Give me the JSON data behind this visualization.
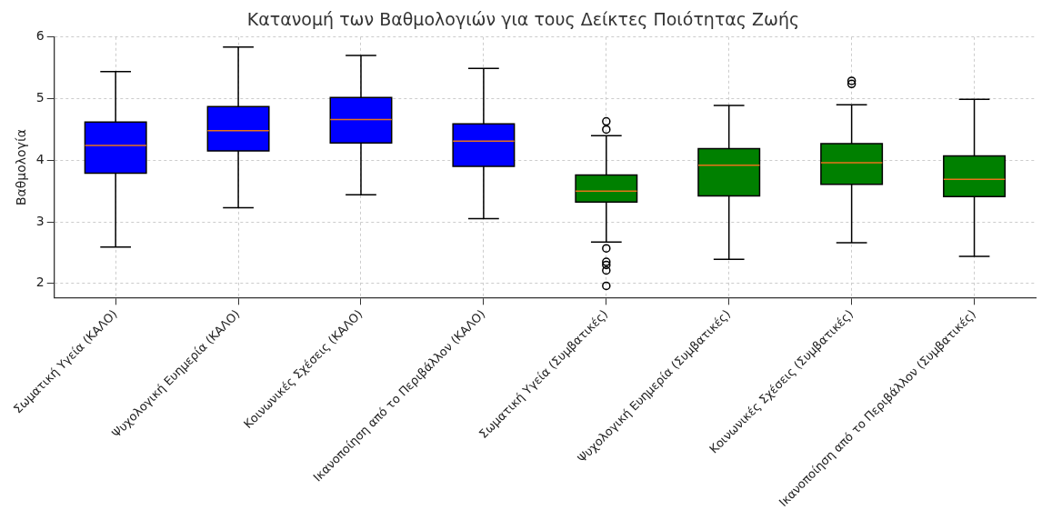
{
  "chart_data": {
    "type": "box",
    "title": "Κατανομή των Βαθμολογιών για τους Δείκτες Ποιότητας Ζωής",
    "ylabel": "Βαθμολογία",
    "categories": [
      "Σωματική Υγεία (ΚΑΛΟ)",
      "Ψυχολογική Ευημερία (ΚΑΛΟ)",
      "Κοινωνικές Σχέσεις (ΚΑΛΟ)",
      "Ικανοποίηση από το Περιβάλλον (ΚΑΛΟ)",
      "Σωματική Υγεία (Συμβατικές)",
      "Ψυχολογική Ευημερία (Συμβατικές)",
      "Κοινωνικές Σχέσεις (Συμβατικές)",
      "Ικανοποίηση από το Περιβάλλον (Συμβατικές)"
    ],
    "colors": [
      "#0000ff",
      "#0000ff",
      "#0000ff",
      "#0000ff",
      "#008000",
      "#008000",
      "#008000",
      "#008000"
    ],
    "boxes": [
      {
        "low": 2.59,
        "q1": 3.79,
        "median": 4.24,
        "q3": 4.62,
        "high": 5.44
      },
      {
        "low": 3.23,
        "q1": 4.15,
        "median": 4.48,
        "q3": 4.87,
        "high": 5.84
      },
      {
        "low": 3.44,
        "q1": 4.28,
        "median": 4.66,
        "q3": 5.02,
        "high": 5.7
      },
      {
        "low": 3.05,
        "q1": 3.9,
        "median": 4.31,
        "q3": 4.59,
        "high": 5.49
      },
      {
        "low": 2.67,
        "q1": 3.32,
        "median": 3.5,
        "q3": 3.76,
        "high": 4.4,
        "outliers": [
          4.63,
          4.5,
          2.57,
          2.35,
          2.3,
          2.21,
          1.96
        ]
      },
      {
        "low": 2.39,
        "q1": 3.42,
        "median": 3.92,
        "q3": 4.19,
        "high": 4.89
      },
      {
        "low": 2.66,
        "q1": 3.61,
        "median": 3.96,
        "q3": 4.27,
        "high": 4.9,
        "outliers": [
          5.29,
          5.24
        ]
      },
      {
        "low": 2.44,
        "q1": 3.41,
        "median": 3.69,
        "q3": 4.07,
        "high": 4.99
      }
    ],
    "ylim": [
      1.77,
      6.0
    ],
    "yticks": [
      2,
      3,
      4,
      5,
      6
    ],
    "grid": true,
    "legend": false
  }
}
